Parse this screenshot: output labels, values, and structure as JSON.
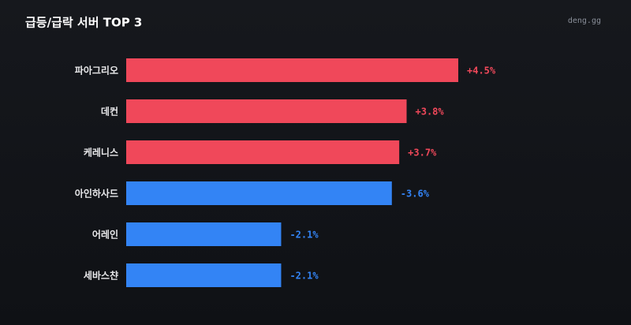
{
  "chart_data": {
    "type": "bar",
    "orientation": "horizontal",
    "title": "급등/급락 서버 TOP 3",
    "source": "deng.gg",
    "categories": [
      "파아그리오",
      "데컨",
      "케레니스",
      "아인하사드",
      "어레인",
      "세바스챤"
    ],
    "values": [
      4.5,
      3.8,
      3.7,
      -3.6,
      -2.1,
      -2.1
    ],
    "value_labels": [
      "+4.5%",
      "+3.8%",
      "+3.7%",
      "-3.6%",
      "-2.1%",
      "-2.1%"
    ],
    "colors": [
      "#f0485a",
      "#f0485a",
      "#f0485a",
      "#3384f5",
      "#3384f5",
      "#3384f5"
    ]
  }
}
